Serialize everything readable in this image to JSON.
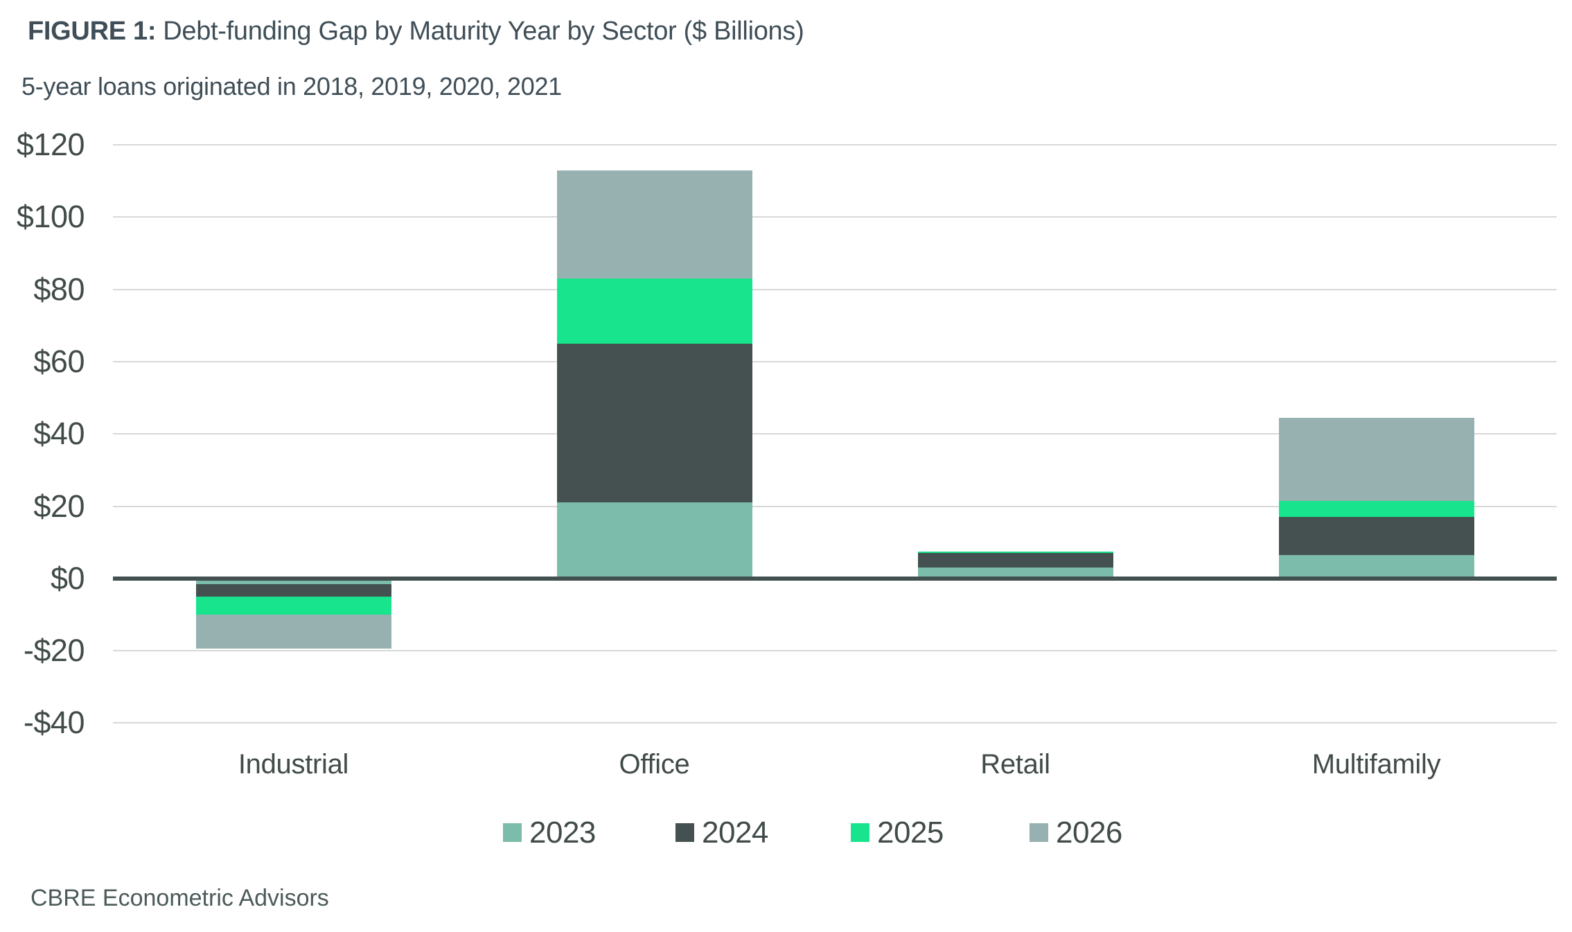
{
  "figure": {
    "title_label": "FIGURE 1:",
    "title_text": "Debt-funding Gap by Maturity Year by Sector ($ Billions)",
    "subtitle": "5-year loans originated in 2018, 2019, 2020, 2021",
    "source": "CBRE Econometric Advisors"
  },
  "chart_data": {
    "type": "bar",
    "stacked": true,
    "title": "FIGURE 1: Debt-funding Gap by Maturity Year by Sector ($ Billions)",
    "subtitle": "5-year loans originated in 2018, 2019, 2020, 2021",
    "xlabel": "",
    "ylabel": "$ Billions",
    "categories": [
      "Industrial",
      "Office",
      "Retail",
      "Multifamily"
    ],
    "series": [
      {
        "name": "2023",
        "color": "#7CBCAB",
        "values": [
          -1.5,
          21,
          3,
          6.5
        ]
      },
      {
        "name": "2024",
        "color": "#445150",
        "values": [
          -3.5,
          44,
          4,
          10.5
        ]
      },
      {
        "name": "2025",
        "color": "#17E48D",
        "values": [
          -5,
          18,
          0.5,
          4.5
        ]
      },
      {
        "name": "2026",
        "color": "#96B1B0",
        "values": [
          -9.5,
          30,
          0,
          23
        ]
      }
    ],
    "category_totals": [
      -19.5,
      113,
      7.5,
      44.5
    ],
    "ylim": [
      -40,
      120
    ],
    "ytick_step": 20,
    "yticks": [
      {
        "value": 120,
        "label": "$120"
      },
      {
        "value": 100,
        "label": "$100"
      },
      {
        "value": 80,
        "label": "$80"
      },
      {
        "value": 60,
        "label": "$60"
      },
      {
        "value": 40,
        "label": "$40"
      },
      {
        "value": 20,
        "label": "$20"
      },
      {
        "value": 0,
        "label": "$0"
      },
      {
        "value": -20,
        "label": "-$20"
      },
      {
        "value": -40,
        "label": "-$40"
      }
    ],
    "grid": true,
    "legend_position": "bottom",
    "colors": {
      "background": "#FFFFFF",
      "gridline": "#D8D8D8",
      "zero_line": "#42504F",
      "title_text": "#3F4E57",
      "axis_text": "#414B49",
      "source_text": "#4C5A5A"
    }
  }
}
